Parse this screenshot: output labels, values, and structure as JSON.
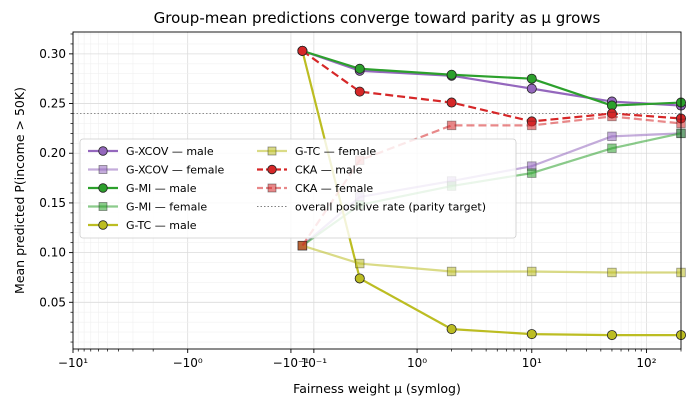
{
  "chart_data": {
    "type": "line",
    "title": "Group-mean predictions converge toward parity as μ grows",
    "xlabel": "Fairness weight μ (symlog)",
    "ylabel": "Mean predicted P(income > 50K)",
    "xscale": "symlog",
    "xlim": [
      -10,
      200
    ],
    "ylim": [
      0.003,
      0.322
    ],
    "x_ticks": [
      {
        "value": -10,
        "label": "−10¹"
      },
      {
        "value": -1,
        "label": "−10⁰"
      },
      {
        "value": -0.1,
        "label": "−10⁻¹"
      },
      {
        "value": 0.1,
        "label": "10⁻¹"
      },
      {
        "value": 1,
        "label": "10⁰"
      },
      {
        "value": 10,
        "label": "10¹"
      },
      {
        "value": 100,
        "label": "10²"
      }
    ],
    "y_ticks": [
      {
        "value": 0.05,
        "label": "0.05"
      },
      {
        "value": 0.1,
        "label": "0.10"
      },
      {
        "value": 0.15,
        "label": "0.15"
      },
      {
        "value": 0.2,
        "label": "0.20"
      },
      {
        "value": 0.25,
        "label": "0.25"
      },
      {
        "value": 0.3,
        "label": "0.30"
      }
    ],
    "grid": true,
    "legend_position": "center-left",
    "x": [
      0,
      0.5,
      2,
      10,
      50,
      200
    ],
    "series": [
      {
        "name": "G-XCOV — male",
        "color": "#9467bd",
        "marker": "circle",
        "style": "solid",
        "alpha": 1.0,
        "values": [
          0.303,
          0.283,
          0.278,
          0.265,
          0.252,
          0.248
        ]
      },
      {
        "name": "G-XCOV — female",
        "color": "#9467bd",
        "marker": "square",
        "style": "solid",
        "alpha": 0.55,
        "values": [
          0.107,
          0.156,
          0.172,
          0.187,
          0.217,
          0.22
        ]
      },
      {
        "name": "G-MI — male",
        "color": "#2ca02c",
        "marker": "circle",
        "style": "solid",
        "alpha": 1.0,
        "values": [
          0.303,
          0.285,
          0.279,
          0.275,
          0.248,
          0.251
        ]
      },
      {
        "name": "G-MI — female",
        "color": "#2ca02c",
        "marker": "square",
        "style": "solid",
        "alpha": 0.55,
        "values": [
          0.107,
          0.148,
          0.167,
          0.18,
          0.205,
          0.22
        ]
      },
      {
        "name": "G-TC — male",
        "color": "#bcbd22",
        "marker": "circle",
        "style": "solid",
        "alpha": 1.0,
        "values": [
          0.303,
          0.074,
          0.023,
          0.018,
          0.017,
          0.017
        ]
      },
      {
        "name": "G-TC — female",
        "color": "#bcbd22",
        "marker": "square",
        "style": "solid",
        "alpha": 0.55,
        "values": [
          0.107,
          0.089,
          0.081,
          0.081,
          0.08,
          0.08
        ]
      },
      {
        "name": "CKA — male",
        "color": "#d62728",
        "marker": "circle",
        "style": "dashed",
        "alpha": 1.0,
        "values": [
          0.303,
          0.262,
          0.251,
          0.232,
          0.24,
          0.235
        ]
      },
      {
        "name": "CKA — female",
        "color": "#d62728",
        "marker": "square",
        "style": "dashed",
        "alpha": 0.55,
        "values": [
          0.107,
          0.193,
          0.228,
          0.228,
          0.237,
          0.23
        ]
      }
    ],
    "reference_line": {
      "name": "overall positive rate (parity target)",
      "value": 0.24,
      "color": "#808080",
      "style": "dotted"
    }
  }
}
